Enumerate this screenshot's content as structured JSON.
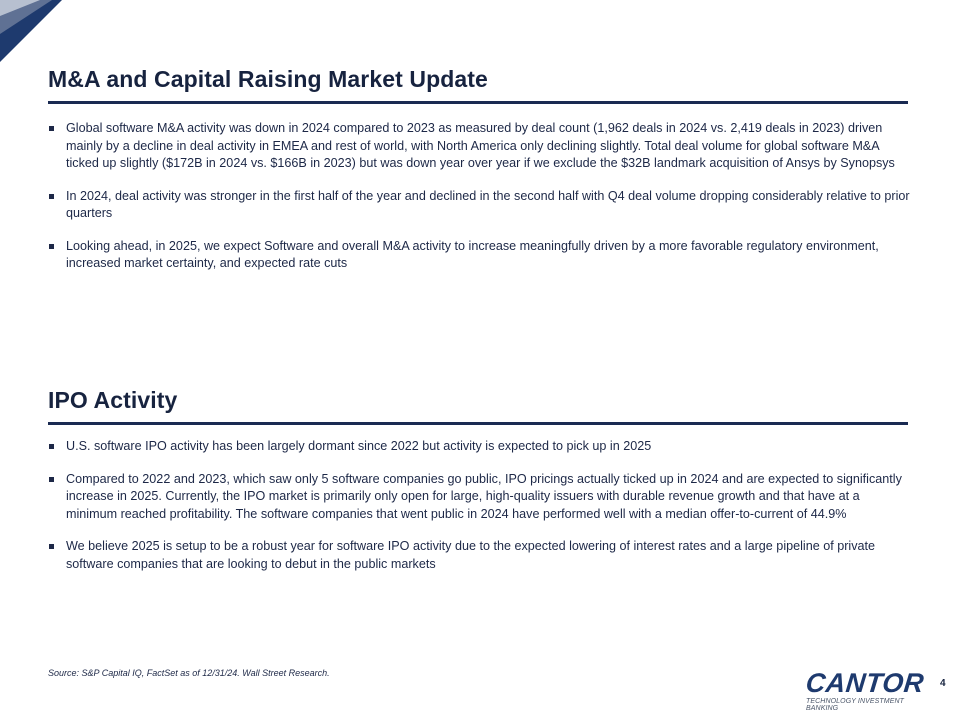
{
  "sections": [
    {
      "title": "M&A and Capital Raising Market Update",
      "bullets": [
        "Global software M&A activity was down in 2024 compared to 2023 as measured by deal count (1,962 deals in 2024 vs. 2,419 deals in 2023) driven mainly by a decline in deal activity in EMEA and rest of world, with North America only declining slightly. Total deal volume for global software M&A ticked up slightly ($172B in 2024 vs. $166B in 2023) but was down year over year if we exclude the $32B landmark acquisition of Ansys by Synopsys",
        "In 2024, deal activity was stronger in the first half of the year and declined in the second half with Q4 deal volume dropping considerably relative to prior quarters",
        "Looking ahead, in 2025, we expect Software and overall M&A activity to increase meaningfully driven by a more favorable regulatory environment, increased market certainty, and expected rate cuts"
      ]
    },
    {
      "title": "IPO Activity",
      "bullets": [
        "U.S. software IPO activity has been largely dormant since 2022 but activity is expected to pick up in 2025",
        "Compared to 2022 and 2023, which saw only 5 software companies go public, IPO pricings actually ticked up in 2024 and are expected to significantly increase in 2025. Currently, the IPO market is primarily only open for large, high-quality issuers with durable revenue growth and that have at a minimum reached profitability. The software companies that went public in 2024 have performed well with a median offer-to-current of 44.9%",
        "We believe 2025 is setup to be a robust year for software IPO activity due to the expected lowering of interest rates and a large pipeline of private software companies that are looking to debut in the public markets"
      ]
    }
  ],
  "footer": {
    "source": "Source: S&P Capital IQ, FactSet as of 12/31/24. Wall Street Research.",
    "logo_word": "CANTOR",
    "logo_sub": "TECHNOLOGY INVESTMENT BANKING",
    "page_number": "4"
  },
  "colors": {
    "navy": "#17233f",
    "rule": "#1a2a52",
    "corner_dark": "#1e3a6e",
    "corner_light": "#aab4c6"
  }
}
